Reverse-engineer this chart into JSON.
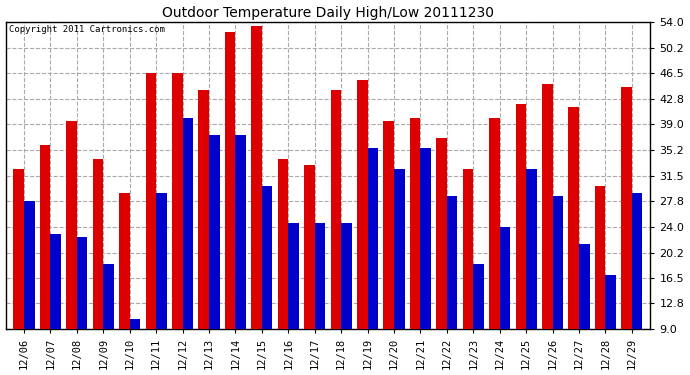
{
  "title": "Outdoor Temperature Daily High/Low 20111230",
  "copyright": "Copyright 2011 Cartronics.com",
  "dates": [
    "12/06",
    "12/07",
    "12/08",
    "12/09",
    "12/10",
    "12/11",
    "12/12",
    "12/13",
    "12/14",
    "12/15",
    "12/16",
    "12/17",
    "12/18",
    "12/19",
    "12/20",
    "12/21",
    "12/22",
    "12/23",
    "12/24",
    "12/25",
    "12/26",
    "12/27",
    "12/28",
    "12/29"
  ],
  "highs": [
    32.5,
    36.0,
    39.5,
    34.0,
    29.0,
    46.5,
    46.5,
    44.0,
    52.5,
    53.5,
    34.0,
    33.0,
    44.0,
    45.5,
    39.5,
    40.0,
    37.0,
    32.5,
    40.0,
    42.0,
    45.0,
    41.5,
    30.0,
    44.5
  ],
  "lows": [
    27.8,
    23.0,
    22.5,
    18.5,
    10.5,
    29.0,
    40.0,
    37.5,
    37.5,
    30.0,
    24.5,
    24.5,
    24.5,
    35.5,
    32.5,
    35.5,
    28.5,
    18.5,
    24.0,
    32.5,
    28.5,
    21.5,
    17.0,
    29.0
  ],
  "high_color": "#dd0000",
  "low_color": "#0000cc",
  "bg_color": "#ffffff",
  "grid_color": "#aaaaaa",
  "ymin": 9.0,
  "ymax": 54.0,
  "yticks": [
    9.0,
    12.8,
    16.5,
    20.2,
    24.0,
    27.8,
    31.5,
    35.2,
    39.0,
    42.8,
    46.5,
    50.2,
    54.0
  ]
}
